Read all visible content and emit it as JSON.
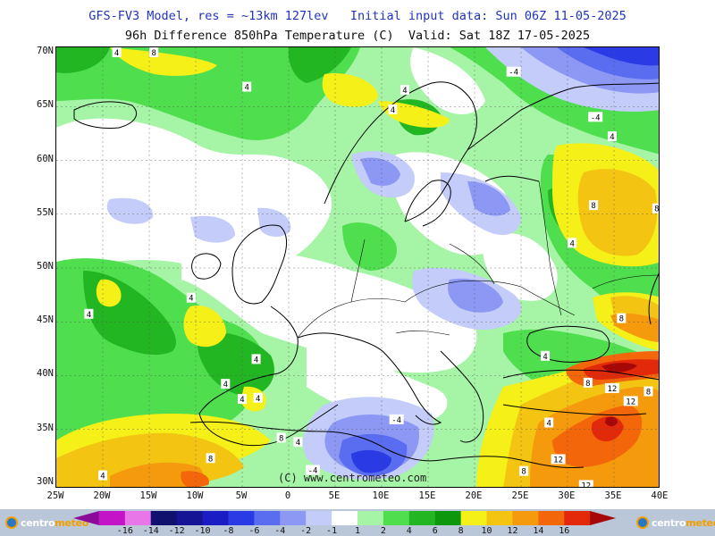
{
  "title": {
    "line1": "GFS-FV3 Model, res = ~13km 127lev   Initial input data: Sun 06Z 11-05-2025",
    "line2": "96h Difference 850hPa Temperature (C)  Valid: Sat 18Z 17-05-2025"
  },
  "axes": {
    "lat_labels": [
      "70N",
      "65N",
      "60N",
      "55N",
      "50N",
      "45N",
      "40N",
      "35N",
      "30N"
    ],
    "lon_labels": [
      "25W",
      "20W",
      "15W",
      "10W",
      "5W",
      "0",
      "5E",
      "10E",
      "15E",
      "20E",
      "25E",
      "30E",
      "35E",
      "40E"
    ]
  },
  "map": {
    "copyright": "(C) www.centrometeo.com",
    "contour_labels": [
      {
        "text": "8",
        "lon": -14.5,
        "lat": 70.0
      },
      {
        "text": "4",
        "lon": -18.5,
        "lat": 70.0
      },
      {
        "text": "4",
        "lon": -4.5,
        "lat": 66.8
      },
      {
        "text": "4",
        "lon": 12.5,
        "lat": 66.5
      },
      {
        "text": "4",
        "lon": 11.2,
        "lat": 64.7
      },
      {
        "text": "-4",
        "lon": 24.2,
        "lat": 68.2
      },
      {
        "text": "-4",
        "lon": 33.0,
        "lat": 64.0
      },
      {
        "text": "4",
        "lon": 34.8,
        "lat": 62.2
      },
      {
        "text": "8",
        "lon": 32.8,
        "lat": 55.8
      },
      {
        "text": "8",
        "lon": 39.6,
        "lat": 55.5
      },
      {
        "text": "4",
        "lon": 30.5,
        "lat": 52.3
      },
      {
        "text": "4",
        "lon": -10.5,
        "lat": 47.2
      },
      {
        "text": "4",
        "lon": -21.5,
        "lat": 45.7
      },
      {
        "text": "8",
        "lon": 35.8,
        "lat": 45.3
      },
      {
        "text": "4",
        "lon": -3.5,
        "lat": 41.5
      },
      {
        "text": "4",
        "lon": -6.8,
        "lat": 39.2
      },
      {
        "text": "4",
        "lon": -5.0,
        "lat": 37.8
      },
      {
        "text": "4",
        "lon": -3.3,
        "lat": 37.9
      },
      {
        "text": "4",
        "lon": 27.6,
        "lat": 41.8
      },
      {
        "text": "8",
        "lon": 32.2,
        "lat": 39.3
      },
      {
        "text": "12",
        "lon": 34.8,
        "lat": 38.8
      },
      {
        "text": "8",
        "lon": 38.7,
        "lat": 38.5
      },
      {
        "text": "12",
        "lon": 36.8,
        "lat": 37.6
      },
      {
        "text": "-4",
        "lon": 11.6,
        "lat": 35.9
      },
      {
        "text": "4",
        "lon": 28.0,
        "lat": 35.6
      },
      {
        "text": "8",
        "lon": -0.8,
        "lat": 34.2
      },
      {
        "text": "4",
        "lon": 1.0,
        "lat": 33.8
      },
      {
        "text": "8",
        "lon": -8.4,
        "lat": 32.3
      },
      {
        "text": "12",
        "lon": 29.0,
        "lat": 32.2
      },
      {
        "text": "-4",
        "lon": 2.6,
        "lat": 31.2
      },
      {
        "text": "8",
        "lon": 25.3,
        "lat": 31.1
      },
      {
        "text": "12",
        "lon": 32.0,
        "lat": 29.8
      },
      {
        "text": "4",
        "lon": -20.0,
        "lat": 30.7
      }
    ]
  },
  "colorbar": {
    "colors": [
      "#8b0a9a",
      "#c414c8",
      "#e876e8",
      "#10106e",
      "#141494",
      "#1c1cc4",
      "#2a3ae4",
      "#5a6cf0",
      "#8c98f4",
      "#c4ccfa",
      "#ffffff",
      "#a6f4a6",
      "#4ede4e",
      "#22b622",
      "#0c980c",
      "#f4f018",
      "#f4c412",
      "#f49a0c",
      "#f4660a",
      "#e22a0a",
      "#a60808"
    ],
    "labels": [
      "-16",
      "-14",
      "-12",
      "-10",
      "-8",
      "-6",
      "-4",
      "-2",
      "-1",
      "1",
      "2",
      "4",
      "6",
      "8",
      "10",
      "12",
      "14",
      "16"
    ]
  },
  "logos": {
    "left_text_a": "centro",
    "left_text_b": "meteo",
    "right_text_a": "centro",
    "right_text_b": "meteo"
  }
}
